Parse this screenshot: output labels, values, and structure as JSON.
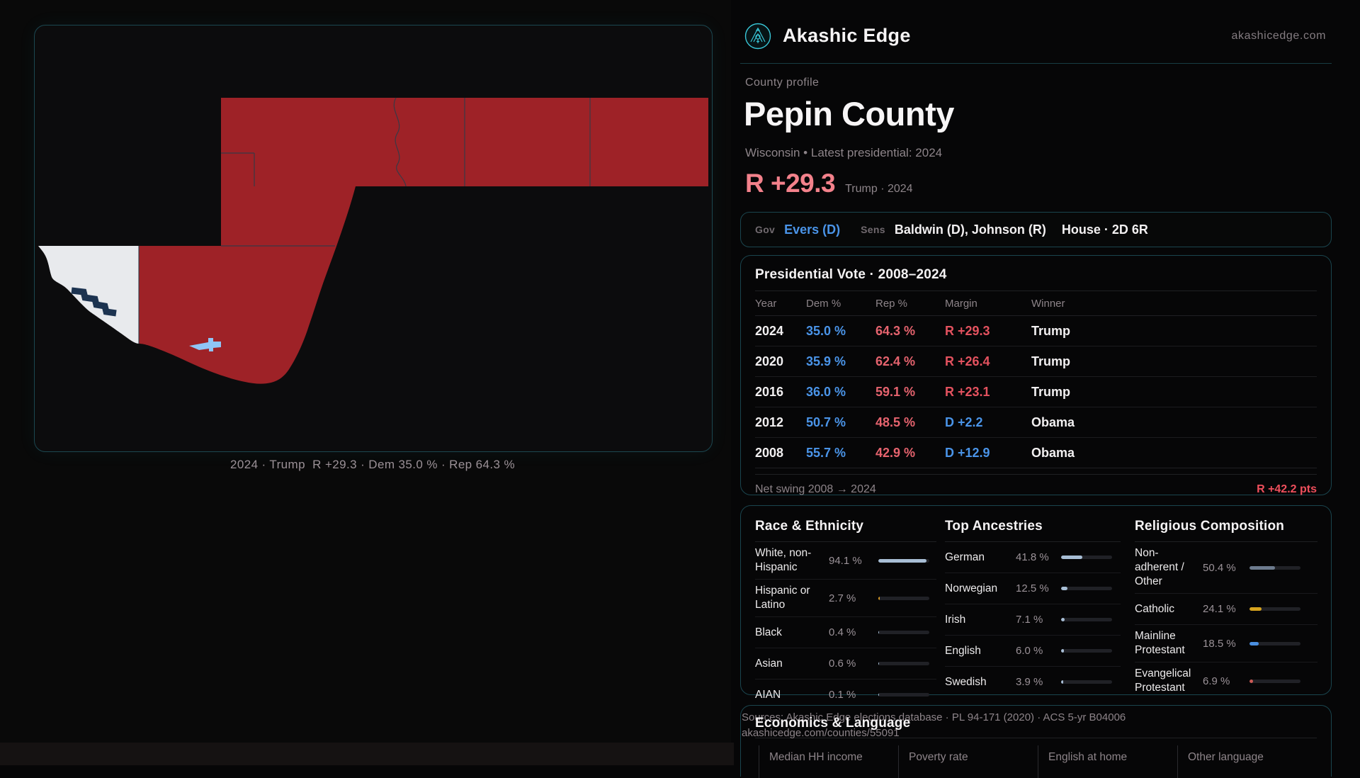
{
  "brand": {
    "name": "Akashic Edge",
    "domain": "akashicedge.com",
    "accent": "#39c7d8"
  },
  "map": {
    "caption": "2024 · Trump  R +29.3 · Dem 35.0 % · Rep 64.3 %",
    "colors": {
      "republican": "#9e2227",
      "light": "#e8eaed",
      "water": "#8fc5f6",
      "river": "#1c3350",
      "county_border": "#2e3c49"
    }
  },
  "profile": {
    "eyebrow": "County profile",
    "county": "Pepin County",
    "subtitle": "Wisconsin • Latest presidential: 2024",
    "headline_margin": "R +29.3",
    "headline_context": "Trump · 2024"
  },
  "officials": {
    "gov_label": "Gov",
    "gov_value": "Evers (D)",
    "sens_label": "Sens",
    "sens_value": "Baldwin (D), Johnson (R)",
    "house_value": "House · 2D 6R"
  },
  "presidential": {
    "title": "Presidential Vote · 2008–2024",
    "columns": [
      "Year",
      "Dem %",
      "Rep %",
      "Margin",
      "Winner"
    ],
    "rows": [
      {
        "year": "2024",
        "dem": "35.0 %",
        "rep": "64.3 %",
        "margin": "R +29.3",
        "margin_party": "R",
        "winner": "Trump"
      },
      {
        "year": "2020",
        "dem": "35.9 %",
        "rep": "62.4 %",
        "margin": "R +26.4",
        "margin_party": "R",
        "winner": "Trump"
      },
      {
        "year": "2016",
        "dem": "36.0 %",
        "rep": "59.1 %",
        "margin": "R +23.1",
        "margin_party": "R",
        "winner": "Trump"
      },
      {
        "year": "2012",
        "dem": "50.7 %",
        "rep": "48.5 %",
        "margin": "D +2.2",
        "margin_party": "D",
        "winner": "Obama"
      },
      {
        "year": "2008",
        "dem": "55.7 %",
        "rep": "42.9 %",
        "margin": "D +12.9",
        "margin_party": "D",
        "winner": "Obama"
      }
    ],
    "net_swing_label": "Net swing 2008 → 2024",
    "net_swing_value": "R +42.2 pts",
    "colors": {
      "dem": "#4a94e8",
      "rep": "#e5636e",
      "margin_r": "#e4525f",
      "margin_d": "#4a94e8",
      "swing": "#ef4f5c"
    }
  },
  "demographics": {
    "race": {
      "title": "Race & Ethnicity",
      "default_bar_color": "#a8bed5",
      "rows": [
        {
          "label": "White, non-Hispanic",
          "value": "94.1 %",
          "pct": 94.1
        },
        {
          "label": "Hispanic or Latino",
          "value": "2.7 %",
          "pct": 2.7,
          "color": "#d99a23"
        },
        {
          "label": "Black",
          "value": "0.4 %",
          "pct": 0.4
        },
        {
          "label": "Asian",
          "value": "0.6 %",
          "pct": 0.6
        },
        {
          "label": "AIAN",
          "value": "0.1 %",
          "pct": 0.1
        }
      ]
    },
    "ancestries": {
      "title": "Top Ancestries",
      "default_bar_color": "#a8bed5",
      "rows": [
        {
          "label": "German",
          "value": "41.8 %",
          "pct": 41.8
        },
        {
          "label": "Norwegian",
          "value": "12.5 %",
          "pct": 12.5
        },
        {
          "label": "Irish",
          "value": "7.1 %",
          "pct": 7.1
        },
        {
          "label": "English",
          "value": "6.0 %",
          "pct": 6.0
        },
        {
          "label": "Swedish",
          "value": "3.9 %",
          "pct": 3.9
        }
      ]
    },
    "religion": {
      "title": "Religious Composition",
      "default_bar_color": "#6d7b8e",
      "rows": [
        {
          "label": "Non-adherent / Other",
          "value": "50.4 %",
          "pct": 50.4,
          "color": "#6d7b8e"
        },
        {
          "label": "Catholic",
          "value": "24.1 %",
          "pct": 24.1,
          "color": "#d7a41e"
        },
        {
          "label": "Mainline Protestant",
          "value": "18.5 %",
          "pct": 18.5,
          "color": "#4a8fe0"
        },
        {
          "label": "Evangelical Protestant",
          "value": "6.9 %",
          "pct": 6.9,
          "color": "#cd5a55"
        }
      ]
    }
  },
  "economics": {
    "title": "Economics & Language",
    "columns": [
      "Median HH income",
      "Poverty rate",
      "English at home",
      "Other language"
    ]
  },
  "sources": {
    "line1": "Sources: Akashic Edge elections database · PL 94-171 (2020) · ACS 5-yr B04006",
    "line2": "akashicedge.com/counties/55091"
  }
}
